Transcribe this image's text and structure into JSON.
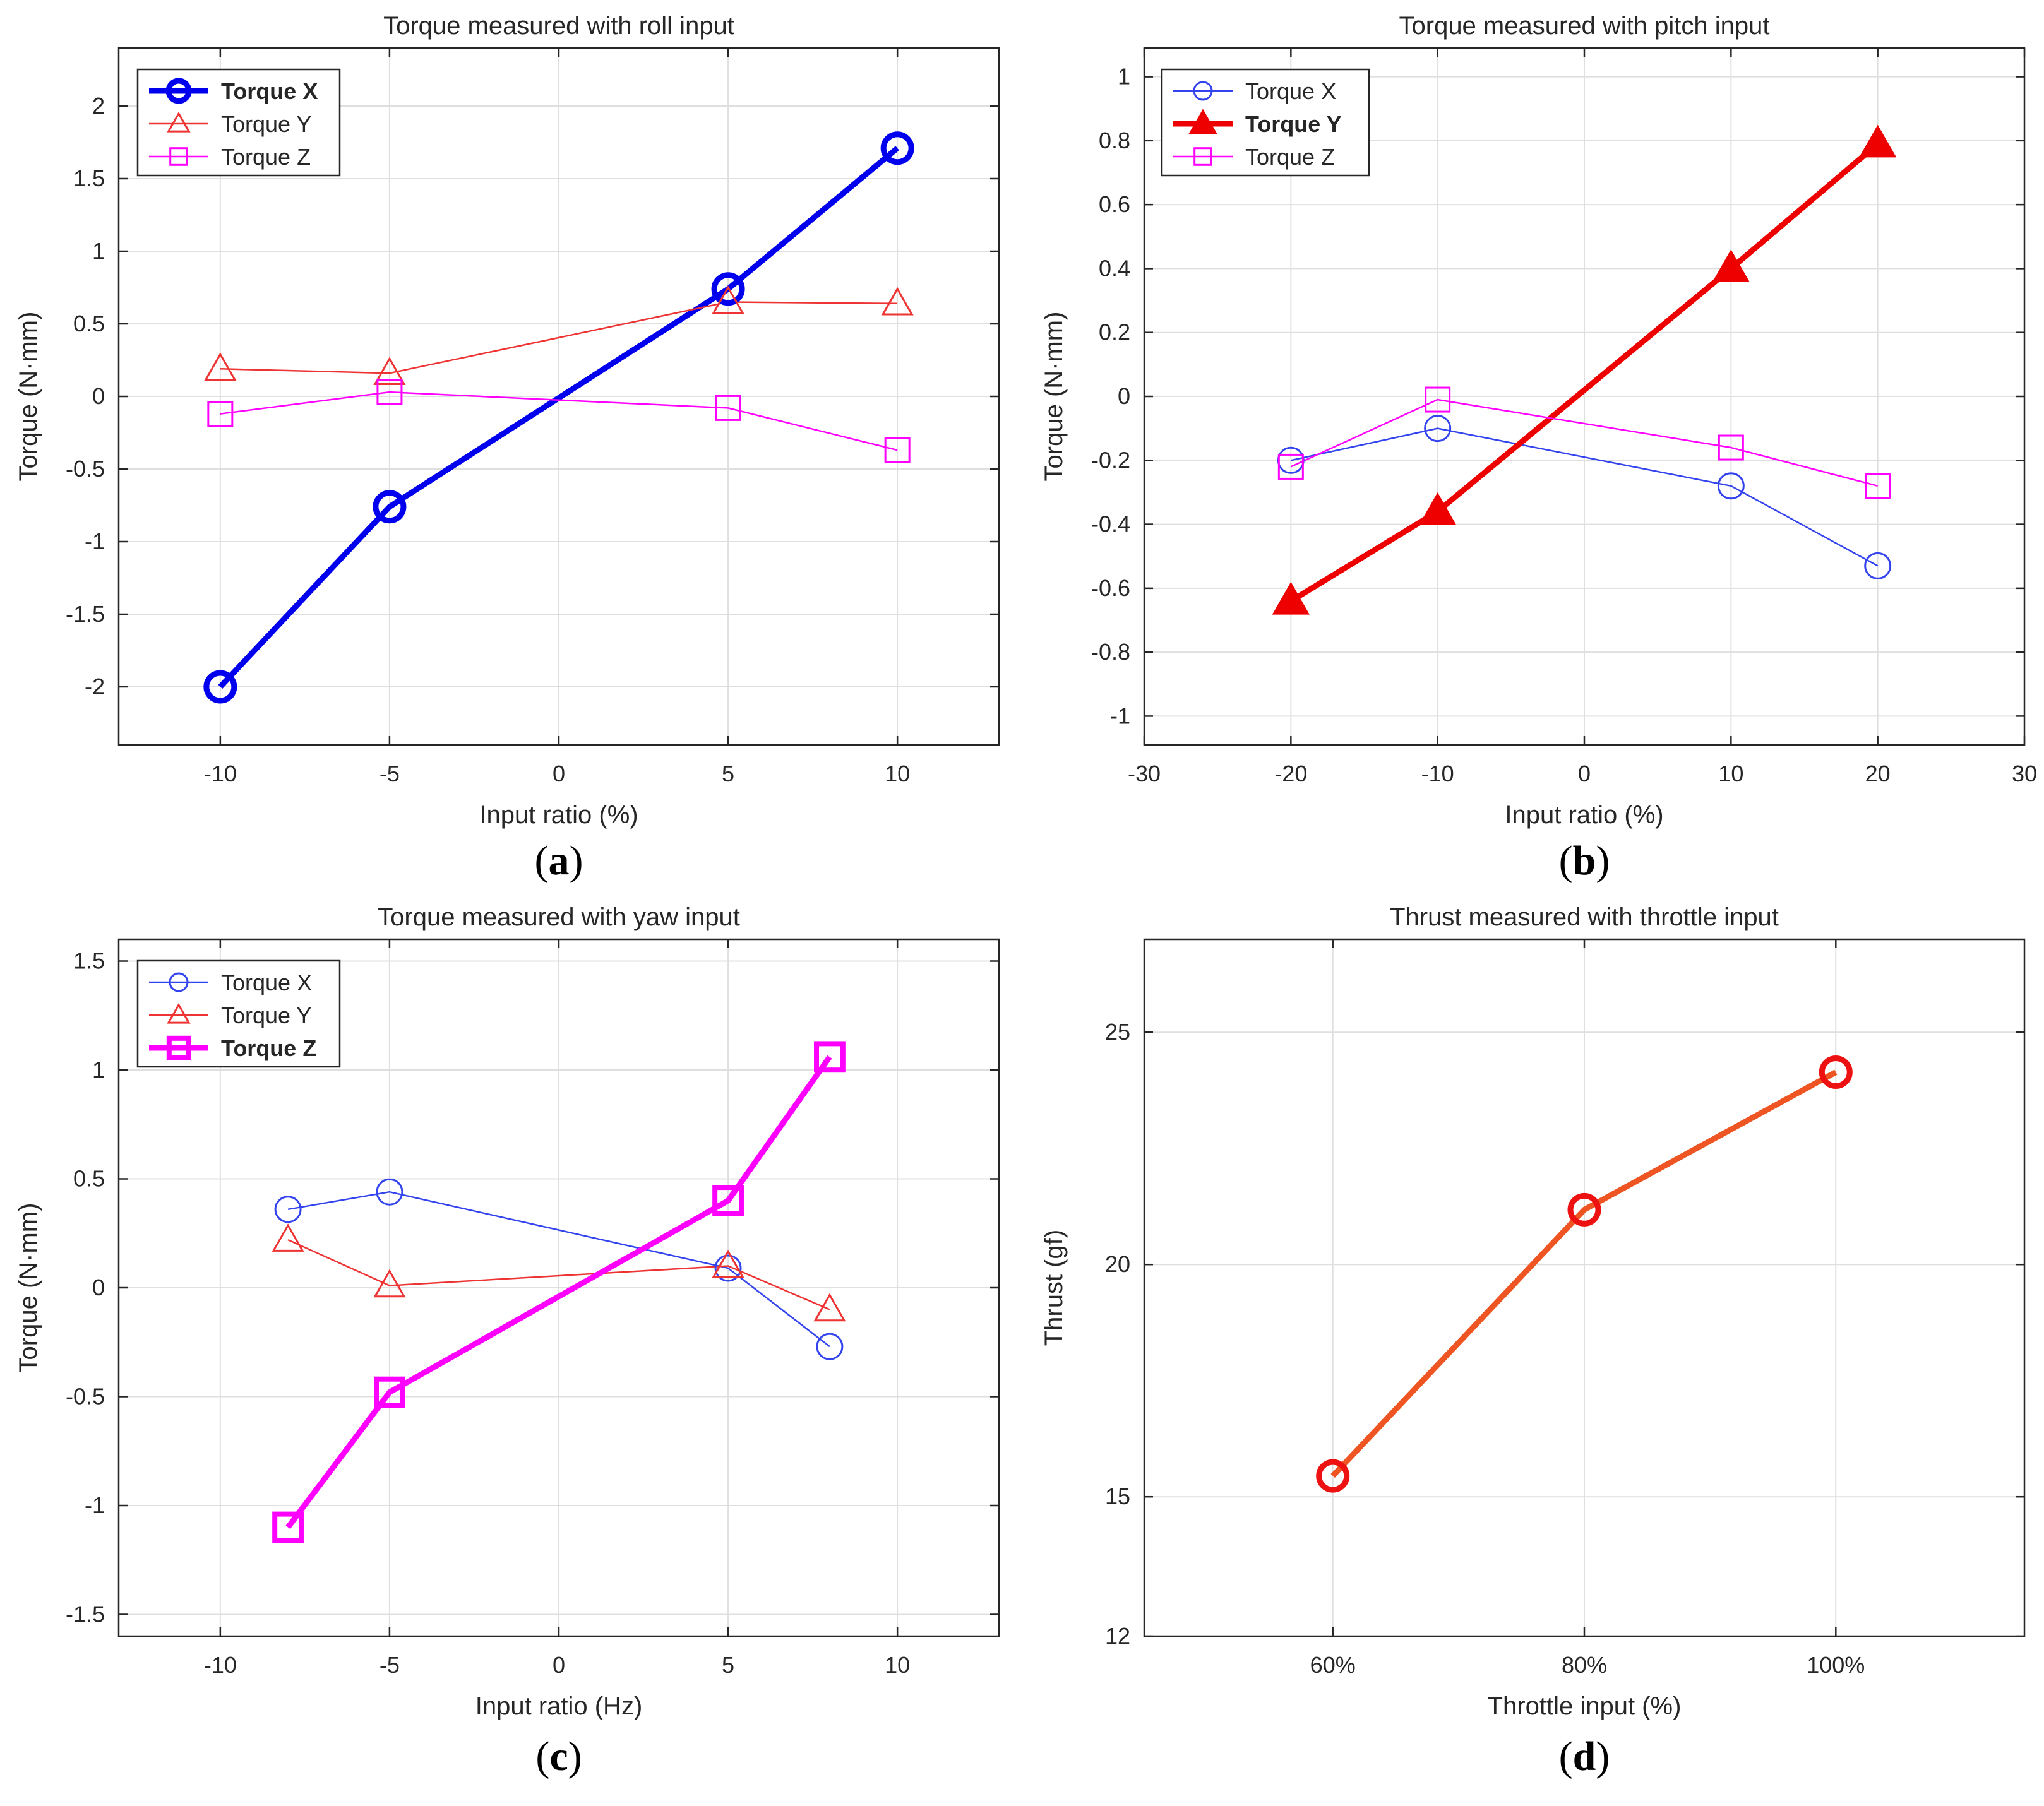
{
  "chart_data": [
    {
      "id": "a",
      "type": "line",
      "panel_label": "a",
      "title": "Torque measured with roll input",
      "xlabel": "Input ratio (%)",
      "ylabel": "Torque (N·mm)",
      "xlim": [
        -13,
        13
      ],
      "ylim": [
        -2.4,
        2.4
      ],
      "xticks": [
        -10,
        -5,
        0,
        5,
        10
      ],
      "xtick_labels": [
        "-10",
        "-5",
        "0",
        "5",
        "10"
      ],
      "yticks": [
        -2,
        -1.5,
        -1,
        -0.5,
        0,
        0.5,
        1,
        1.5,
        2
      ],
      "ytick_labels": [
        "-2",
        "-1.5",
        "-1",
        "-0.5",
        "0",
        "0.5",
        "1",
        "1.5",
        "2"
      ],
      "grid": true,
      "legend_position": "top-left",
      "series": [
        {
          "name": "Torque X",
          "color": "#0000ee",
          "marker": "circle",
          "bold": true,
          "x": [
            -10,
            -5,
            5,
            10
          ],
          "y": [
            -2.0,
            -0.76,
            0.74,
            1.71
          ]
        },
        {
          "name": "Torque Y",
          "color": "#ee3333",
          "marker": "triangle",
          "bold": false,
          "x": [
            -10,
            -5,
            5,
            10
          ],
          "y": [
            0.19,
            0.16,
            0.65,
            0.64
          ]
        },
        {
          "name": "Torque Z",
          "color": "#ff00ff",
          "marker": "square",
          "bold": false,
          "x": [
            -10,
            -5,
            5,
            10
          ],
          "y": [
            -0.12,
            0.03,
            -0.08,
            -0.37
          ]
        }
      ]
    },
    {
      "id": "b",
      "type": "line",
      "panel_label": "b",
      "title": "Torque measured with pitch input",
      "xlabel": "Input ratio (%)",
      "ylabel": "Torque (N·mm)",
      "xlim": [
        -30,
        30
      ],
      "ylim": [
        -1.09,
        1.09
      ],
      "xticks": [
        -30,
        -20,
        -10,
        0,
        10,
        20,
        30
      ],
      "xtick_labels": [
        "-30",
        "-20",
        "-10",
        "0",
        "10",
        "20",
        "30"
      ],
      "yticks": [
        -1,
        -0.8,
        -0.6,
        -0.4,
        -0.2,
        0,
        0.2,
        0.4,
        0.6,
        0.8,
        1
      ],
      "ytick_labels": [
        "-1",
        "-0.8",
        "-0.6",
        "-0.4",
        "-0.2",
        "0",
        "0.2",
        "0.4",
        "0.6",
        "0.8",
        "1"
      ],
      "grid": true,
      "legend_position": "top-left",
      "series": [
        {
          "name": "Torque X",
          "color": "#3344ee",
          "marker": "circle",
          "bold": false,
          "x": [
            -20,
            -10,
            10,
            20
          ],
          "y": [
            -0.2,
            -0.1,
            -0.28,
            -0.53
          ]
        },
        {
          "name": "Torque Y",
          "color": "#ee0000",
          "marker": "triangle",
          "bold": true,
          "x": [
            -20,
            -10,
            10,
            20
          ],
          "y": [
            -0.64,
            -0.36,
            0.4,
            0.79
          ]
        },
        {
          "name": "Torque Z",
          "color": "#ff00ff",
          "marker": "square",
          "bold": false,
          "x": [
            -20,
            -10,
            10,
            20
          ],
          "y": [
            -0.22,
            -0.01,
            -0.16,
            -0.28
          ]
        }
      ]
    },
    {
      "id": "c",
      "type": "line",
      "panel_label": "c",
      "title": "Torque measured with yaw input",
      "xlabel": "Input ratio (Hz)",
      "ylabel": "Torque (N·mm)",
      "xlim": [
        -13,
        13
      ],
      "ylim": [
        -1.6,
        1.6
      ],
      "xticks": [
        -10,
        -5,
        0,
        5,
        10
      ],
      "xtick_labels": [
        "-10",
        "-5",
        "0",
        "5",
        "10"
      ],
      "yticks": [
        -1.5,
        -1,
        -0.5,
        0,
        0.5,
        1,
        1.5
      ],
      "ytick_labels": [
        "-1.5",
        "-1",
        "-0.5",
        "0",
        "0.5",
        "1",
        "1.5"
      ],
      "grid": true,
      "legend_position": "top-left",
      "series": [
        {
          "name": "Torque X",
          "color": "#3344ee",
          "marker": "circle",
          "bold": false,
          "x": [
            -8,
            -5,
            5,
            8
          ],
          "y": [
            0.36,
            0.44,
            0.09,
            -0.27
          ]
        },
        {
          "name": "Torque Y",
          "color": "#ee3333",
          "marker": "triangle",
          "bold": false,
          "x": [
            -8,
            -5,
            5,
            8
          ],
          "y": [
            0.22,
            0.01,
            0.1,
            -0.1
          ]
        },
        {
          "name": "Torque Z",
          "color": "#ff00ff",
          "marker": "square",
          "bold": true,
          "x": [
            -8,
            -5,
            5,
            8
          ],
          "y": [
            -1.1,
            -0.48,
            0.4,
            1.06
          ]
        }
      ]
    },
    {
      "id": "d",
      "type": "line",
      "panel_label": "d",
      "title": "Thrust measured with throttle input",
      "xlabel": "Throttle input (%)",
      "ylabel": "Thrust (gf)",
      "xlim": [
        45,
        115
      ],
      "ylim": [
        12,
        27
      ],
      "xticks": [
        60,
        80,
        100
      ],
      "xtick_labels": [
        "60%",
        "80%",
        "100%"
      ],
      "yticks": [
        12,
        15,
        20,
        25
      ],
      "ytick_labels": [
        "12",
        "15",
        "20",
        "25"
      ],
      "grid": true,
      "legend_position": "none",
      "series": [
        {
          "name": "Thrust",
          "color": "#ee5522",
          "marker_color": "#ee1111",
          "marker": "circle",
          "bold": true,
          "x": [
            60,
            80,
            100
          ],
          "y": [
            15.45,
            21.18,
            24.14
          ]
        }
      ]
    }
  ]
}
